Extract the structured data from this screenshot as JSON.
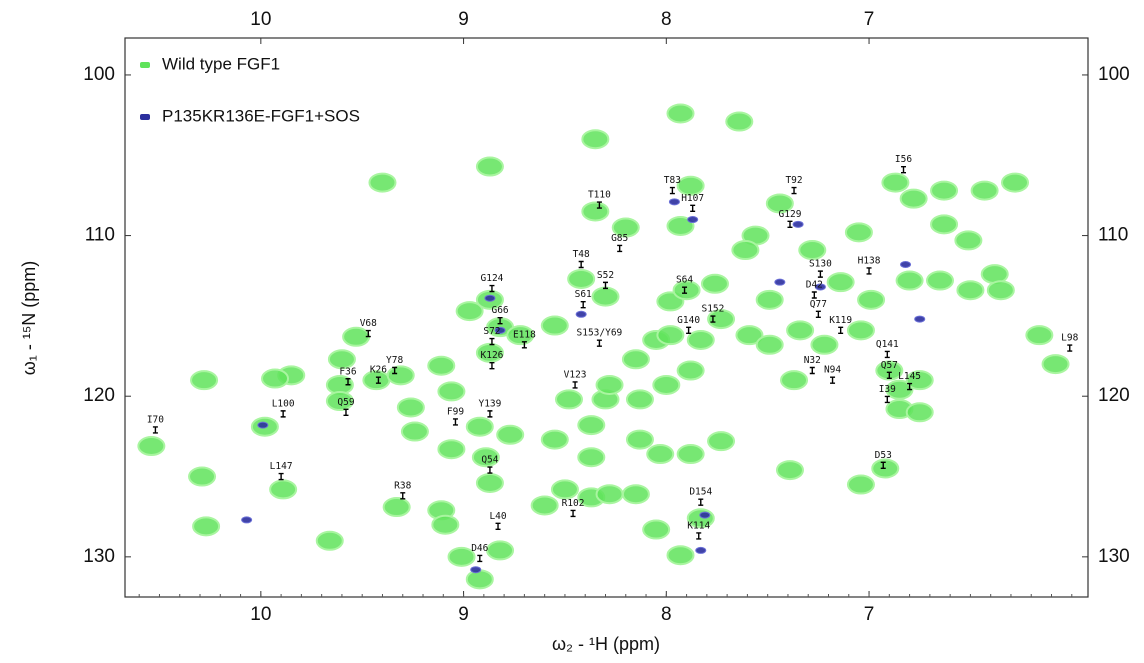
{
  "chart_data": {
    "type": "scatter",
    "xlabel": "ω₂ - ¹H  (ppm)",
    "ylabel": "ω₁ - ¹⁵N  (ppm)",
    "xlim": [
      10.67,
      5.92
    ],
    "ylim": [
      97.7,
      132.5
    ],
    "xticks": [
      10,
      9,
      8,
      7
    ],
    "yticks": [
      100,
      110,
      120,
      130
    ],
    "legend": "upper left",
    "series": [
      {
        "name": "Wild type FGF1",
        "color": "#5fe35a",
        "x": [
          7.93,
          7.64,
          8.35,
          8.87,
          9.4,
          7.88,
          8.35,
          8.2,
          7.93,
          7.44,
          6.87,
          6.78,
          6.63,
          6.43,
          6.28,
          6.63,
          6.51,
          7.05,
          7.56,
          7.61,
          7.28,
          8.42,
          8.3,
          7.98,
          7.9,
          7.76,
          7.14,
          6.99,
          6.8,
          6.65,
          6.5,
          6.38,
          6.35,
          8.97,
          8.87,
          8.55,
          8.82,
          8.87,
          8.72,
          9.53,
          9.85,
          9.93,
          9.6,
          9.43,
          9.31,
          9.11,
          9.61,
          9.61,
          9.26,
          9.06,
          9.24,
          9.98,
          10.54,
          10.28,
          10.29,
          10.27,
          9.89,
          9.66,
          9.33,
          9.06,
          8.92,
          8.89,
          8.87,
          9.11,
          9.09,
          9.01,
          8.92,
          8.82,
          8.77,
          8.55,
          8.6,
          8.5,
          8.37,
          8.28,
          8.37,
          8.37,
          8.3,
          8.28,
          8.48,
          8.13,
          8.0,
          7.88,
          8.15,
          8.05,
          7.98,
          7.83,
          7.73,
          7.59,
          7.49,
          7.34,
          7.22,
          7.04,
          7.37,
          7.49,
          8.13,
          8.03,
          7.88,
          7.73,
          8.15,
          8.05,
          7.83,
          7.93,
          7.39,
          7.04,
          6.92,
          6.9,
          6.85,
          6.75,
          6.85,
          6.75,
          6.16,
          6.08
        ],
        "values": [
          102.4,
          102.9,
          104.0,
          105.7,
          106.7,
          106.9,
          108.5,
          109.5,
          109.4,
          108.0,
          106.7,
          107.7,
          107.2,
          107.2,
          106.7,
          109.3,
          110.3,
          109.8,
          110.0,
          110.9,
          110.9,
          112.7,
          113.8,
          114.1,
          113.4,
          113.0,
          112.9,
          114.0,
          112.8,
          112.8,
          113.4,
          112.4,
          113.4,
          114.7,
          114.0,
          115.6,
          115.7,
          117.3,
          116.2,
          116.3,
          118.7,
          118.9,
          117.7,
          119.0,
          118.7,
          118.1,
          119.3,
          120.3,
          120.7,
          119.7,
          122.2,
          121.9,
          123.1,
          119.0,
          125.0,
          128.1,
          125.8,
          129.0,
          126.9,
          123.3,
          121.9,
          123.8,
          125.4,
          127.1,
          128.0,
          130.0,
          131.4,
          129.6,
          122.4,
          122.7,
          126.8,
          125.8,
          126.3,
          126.1,
          123.8,
          121.8,
          120.2,
          119.3,
          120.2,
          120.2,
          119.3,
          118.4,
          117.7,
          116.5,
          116.2,
          116.5,
          115.2,
          116.2,
          116.8,
          115.9,
          116.8,
          115.9,
          119.0,
          114.0,
          122.7,
          123.6,
          123.6,
          122.8,
          126.1,
          128.3,
          127.6,
          129.9,
          124.6,
          125.5,
          124.5,
          118.4,
          119.6,
          119.0,
          120.8,
          121.0,
          116.2,
          118.0
        ]
      },
      {
        "name": "P135KR136E-FGF1+SOS",
        "color": "#2b2f9e",
        "x": [
          7.96,
          7.87,
          7.35,
          8.87,
          8.82,
          8.42,
          7.44,
          7.24,
          6.82,
          6.75,
          10.07,
          9.99,
          7.81,
          7.83,
          8.94
        ],
        "values": [
          107.9,
          109.0,
          109.3,
          113.9,
          115.9,
          114.9,
          112.9,
          113.2,
          111.8,
          115.2,
          127.7,
          121.8,
          127.4,
          129.6,
          130.8
        ]
      }
    ],
    "annotations": [
      {
        "text": "I56",
        "x": 6.83,
        "y": 105.9
      },
      {
        "text": "T83",
        "x": 7.97,
        "y": 107.2
      },
      {
        "text": "T92",
        "x": 7.37,
        "y": 107.2
      },
      {
        "text": "T110",
        "x": 8.33,
        "y": 108.1
      },
      {
        "text": "H107",
        "x": 7.87,
        "y": 108.3
      },
      {
        "text": "G129",
        "x": 7.39,
        "y": 109.3
      },
      {
        "text": "G85",
        "x": 8.23,
        "y": 110.8
      },
      {
        "text": "T48",
        "x": 8.42,
        "y": 111.8
      },
      {
        "text": "H138",
        "x": 7.0,
        "y": 112.2
      },
      {
        "text": "S130",
        "x": 7.24,
        "y": 112.4
      },
      {
        "text": "S52",
        "x": 8.3,
        "y": 113.1
      },
      {
        "text": "G124",
        "x": 8.86,
        "y": 113.3
      },
      {
        "text": "S64",
        "x": 7.91,
        "y": 113.4
      },
      {
        "text": "D42",
        "x": 7.27,
        "y": 113.7
      },
      {
        "text": "S61",
        "x": 8.41,
        "y": 114.3
      },
      {
        "text": "G66",
        "x": 8.82,
        "y": 115.3
      },
      {
        "text": "S152",
        "x": 7.77,
        "y": 115.2
      },
      {
        "text": "Q77",
        "x": 7.25,
        "y": 114.9
      },
      {
        "text": "K119",
        "x": 7.14,
        "y": 115.9
      },
      {
        "text": "G140",
        "x": 7.89,
        "y": 115.9
      },
      {
        "text": "V68",
        "x": 9.47,
        "y": 116.1
      },
      {
        "text": "S72",
        "x": 8.86,
        "y": 116.6
      },
      {
        "text": "E118",
        "x": 8.7,
        "y": 116.8
      },
      {
        "text": "S153/Y69",
        "x": 8.33,
        "y": 116.7
      },
      {
        "text": "N32",
        "x": 7.28,
        "y": 118.4
      },
      {
        "text": "N94",
        "x": 7.18,
        "y": 119.0
      },
      {
        "text": "Q141",
        "x": 6.91,
        "y": 117.4
      },
      {
        "text": "L98",
        "x": 6.01,
        "y": 117.0
      },
      {
        "text": "K126",
        "x": 8.86,
        "y": 118.1
      },
      {
        "text": "Y78",
        "x": 9.34,
        "y": 118.4
      },
      {
        "text": "K26",
        "x": 9.42,
        "y": 119.0
      },
      {
        "text": "F36",
        "x": 9.57,
        "y": 119.1
      },
      {
        "text": "Q59",
        "x": 9.58,
        "y": 121.0
      },
      {
        "text": "Y139",
        "x": 8.87,
        "y": 121.1
      },
      {
        "text": "F99",
        "x": 9.04,
        "y": 121.6
      },
      {
        "text": "V123",
        "x": 8.45,
        "y": 119.3
      },
      {
        "text": "L100",
        "x": 9.89,
        "y": 121.1
      },
      {
        "text": "I70",
        "x": 10.52,
        "y": 122.1
      },
      {
        "text": "Q57",
        "x": 6.9,
        "y": 118.7
      },
      {
        "text": "L145",
        "x": 6.8,
        "y": 119.4
      },
      {
        "text": "I39",
        "x": 6.91,
        "y": 120.2
      },
      {
        "text": "Q54",
        "x": 8.87,
        "y": 124.6
      },
      {
        "text": "L147",
        "x": 9.9,
        "y": 125.0
      },
      {
        "text": "R38",
        "x": 9.3,
        "y": 126.2
      },
      {
        "text": "D53",
        "x": 6.93,
        "y": 124.3
      },
      {
        "text": "R102",
        "x": 8.46,
        "y": 127.3
      },
      {
        "text": "L40",
        "x": 8.83,
        "y": 128.1
      },
      {
        "text": "D154",
        "x": 7.83,
        "y": 126.6
      },
      {
        "text": "K114",
        "x": 7.84,
        "y": 128.7
      },
      {
        "text": "D46",
        "x": 8.92,
        "y": 130.1
      }
    ]
  }
}
